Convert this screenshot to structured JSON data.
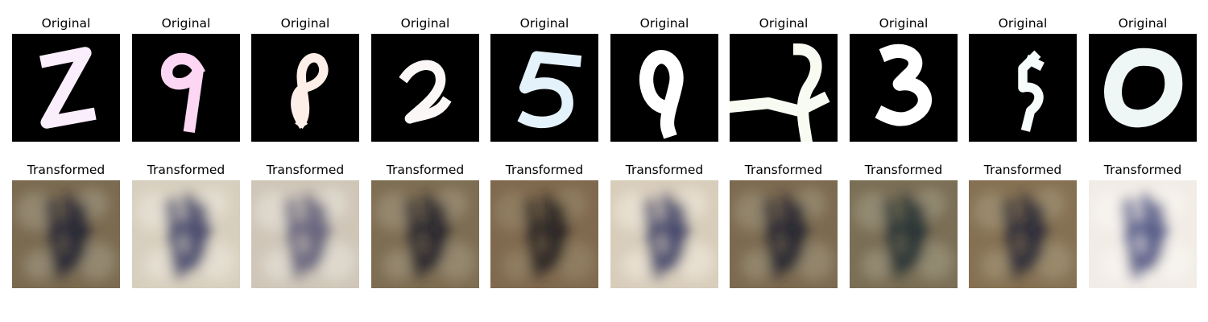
{
  "labels": {
    "original": "Original",
    "transformed": "Transformed"
  },
  "samples": [
    {
      "digit": "2",
      "ink": "#fbeefc",
      "bg": "#000000",
      "t_bg": "#7a6a50",
      "t_dark": "#1f2233",
      "t_light": "#a8a08a"
    },
    {
      "digit": "9",
      "ink": "#fcd6f2",
      "bg": "#000000",
      "t_bg": "#d7cfbe",
      "t_dark": "#3c3f66",
      "t_light": "#eeeae0"
    },
    {
      "digit": "8",
      "ink": "#fdeee8",
      "bg": "#000000",
      "t_bg": "#cfc6b8",
      "t_dark": "#5d5a78",
      "t_light": "#ebe7df"
    },
    {
      "digit": "2",
      "ink": "#fbf7f7",
      "bg": "#000000",
      "t_bg": "#7d6d52",
      "t_dark": "#23222c",
      "t_light": "#a79d85"
    },
    {
      "digit": "5",
      "ink": "#e4f2fc",
      "bg": "#000000",
      "t_bg": "#80694e",
      "t_dark": "#231e20",
      "t_light": "#9b8c70"
    },
    {
      "digit": "9",
      "ink": "#ffffff",
      "bg": "#000000",
      "t_bg": "#d8cdbb",
      "t_dark": "#3b3d67",
      "t_light": "#f2ece0"
    },
    {
      "digit": "4",
      "ink": "#f8fbf2",
      "bg": "#000000",
      "t_bg": "#7c6a50",
      "t_dark": "#1f2230",
      "t_light": "#a49b82"
    },
    {
      "digit": "3",
      "ink": "#ffffff",
      "bg": "#000000",
      "t_bg": "#7a6e55",
      "t_dark": "#213035",
      "t_light": "#a6a186"
    },
    {
      "digit": "5",
      "ink": "#f6fcfb",
      "bg": "#000000",
      "t_bg": "#857052",
      "t_dark": "#252838",
      "t_light": "#a99c80"
    },
    {
      "digit": "0",
      "ink": "#eef6f6",
      "bg": "#000000",
      "t_bg": "#f1ece6",
      "t_dark": "#4a4f80",
      "t_light": "#fbf8f3"
    }
  ]
}
